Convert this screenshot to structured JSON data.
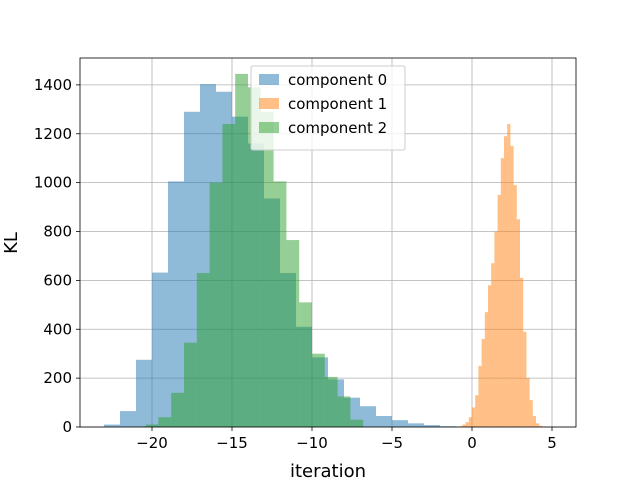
{
  "chart_data": {
    "type": "histogram",
    "xlabel": "iteration",
    "ylabel": "KL",
    "xlim": [
      -24.5,
      6.5
    ],
    "ylim": [
      0,
      1510
    ],
    "grid": true,
    "legend_placement": "top-center",
    "xticks": [
      -20,
      -15,
      -10,
      -5,
      0,
      5
    ],
    "yticks": [
      0,
      200,
      400,
      600,
      800,
      1000,
      1200,
      1400
    ],
    "series": [
      {
        "name": "component 0",
        "color": "#1f77b4",
        "bin_edges": [
          -23.0,
          -22.0,
          -21.0,
          -20.0,
          -19.0,
          -18.0,
          -17.0,
          -16.0,
          -15.0,
          -14.0,
          -13.0,
          -12.0,
          -11.0,
          -10.0,
          -9.0,
          -8.0,
          -7.0,
          -6.0,
          -5.0,
          -4.0,
          -3.0,
          -2.0,
          -1.0
        ],
        "counts": [
          10,
          65,
          275,
          632,
          1005,
          1290,
          1403,
          1372,
          1270,
          1160,
          935,
          630,
          410,
          285,
          195,
          120,
          85,
          45,
          28,
          15,
          8,
          3
        ]
      },
      {
        "name": "component 1",
        "color": "#ff7f0e",
        "bin_edges": [
          -0.8,
          -0.6,
          -0.4,
          -0.2,
          0.0,
          0.2,
          0.4,
          0.6,
          0.8,
          1.0,
          1.2,
          1.4,
          1.6,
          1.8,
          2.0,
          2.2,
          2.4,
          2.6,
          2.8,
          3.0,
          3.2,
          3.4,
          3.6,
          3.8,
          4.0,
          4.2,
          4.4
        ],
        "counts": [
          3,
          10,
          20,
          40,
          80,
          130,
          250,
          360,
          470,
          580,
          670,
          800,
          950,
          1100,
          1190,
          1240,
          1150,
          990,
          850,
          610,
          390,
          200,
          110,
          45,
          15,
          5
        ]
      },
      {
        "name": "component 2",
        "color": "#2ca02c",
        "bin_edges": [
          -20.4,
          -19.6,
          -18.8,
          -18.0,
          -17.2,
          -16.4,
          -15.6,
          -14.8,
          -14.0,
          -13.2,
          -12.4,
          -11.6,
          -10.8,
          -10.0,
          -9.2,
          -8.4,
          -7.6,
          -6.8
        ],
        "counts": [
          10,
          40,
          140,
          345,
          630,
          1000,
          1240,
          1445,
          1390,
          1290,
          1005,
          765,
          510,
          300,
          205,
          125,
          30
        ]
      }
    ]
  }
}
